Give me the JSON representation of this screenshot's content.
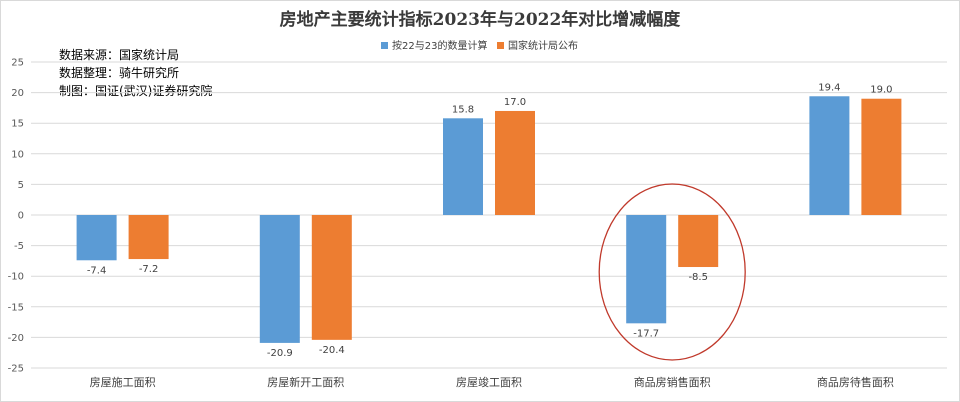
{
  "chart_data": {
    "type": "bar",
    "title": "房地产主要统计指标2023年与2022年对比增减幅度",
    "categories": [
      "房屋施工面积",
      "房屋新开工面积",
      "房屋竣工面积",
      "商品房销售面积",
      "商品房待售面积"
    ],
    "series": [
      {
        "name": "按22与23的数量计算",
        "values": [
          -7.4,
          -20.9,
          15.8,
          -17.7,
          19.4
        ],
        "color": "#5b9bd5"
      },
      {
        "name": "国家统计局公布",
        "values": [
          -7.2,
          -20.4,
          17.0,
          -8.5,
          19.0
        ],
        "color": "#ed7d31"
      }
    ],
    "ylim": [
      -25,
      25
    ],
    "yticks": [
      25,
      20,
      15,
      10,
      5,
      0,
      -5,
      -10,
      -15,
      -20,
      -25
    ],
    "grid": true,
    "legend_position": "top-center",
    "notes": [
      "数据来源：国家统计局",
      "数据整理：骑牛研究所",
      "制图：国证(武汉)证券研究院"
    ],
    "highlight": {
      "category_index": 3,
      "shape": "ellipse",
      "color": "#c0392b"
    }
  }
}
